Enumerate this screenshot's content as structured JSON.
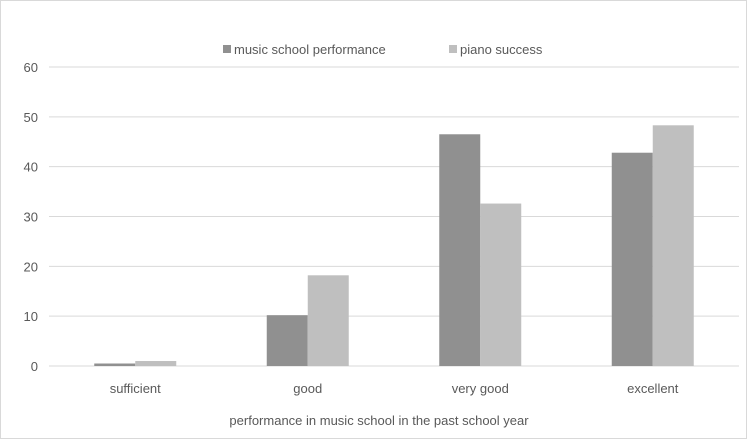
{
  "chart_data": {
    "type": "bar",
    "title": "",
    "xlabel": "performance in music school in the past school year",
    "ylabel": "",
    "ylim": [
      0,
      60
    ],
    "yticks": [
      0,
      10,
      20,
      30,
      40,
      50,
      60
    ],
    "categories": [
      "sufficient",
      "good",
      "very good",
      "excellent"
    ],
    "series": [
      {
        "name": "music school performance",
        "values": [
          0.5,
          10.2,
          46.5,
          42.8
        ],
        "color": "#909090"
      },
      {
        "name": "piano success",
        "values": [
          1.0,
          18.2,
          32.6,
          48.3
        ],
        "color": "#bfbfbf"
      }
    ],
    "grid": true,
    "legend_position": "top"
  }
}
